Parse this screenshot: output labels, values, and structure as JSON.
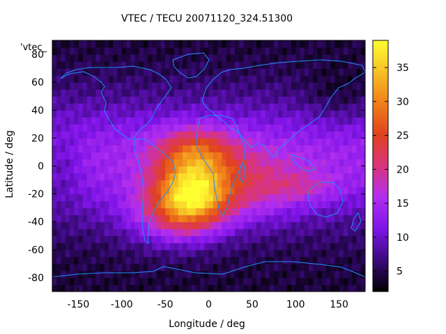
{
  "chart_data": {
    "type": "heatmap",
    "title": "VTEC / TECU 20071120_324.51300",
    "xlabel": "Longitude / deg",
    "ylabel": "Latitude / deg",
    "key_label": "'vtec_",
    "xlim": [
      -180,
      180
    ],
    "ylim": [
      -90,
      90
    ],
    "x_ticks": [
      -150,
      -100,
      -50,
      0,
      50,
      100,
      150
    ],
    "y_ticks": [
      -80,
      -60,
      -40,
      -20,
      0,
      20,
      40,
      60,
      80
    ],
    "colorbar": {
      "range": [
        2,
        39
      ],
      "ticks": [
        5,
        10,
        15,
        20,
        25,
        30,
        35
      ],
      "colormap": [
        "#000000",
        "#3a0a7a",
        "#7e14e8",
        "#b12ef0",
        "#d9347e",
        "#e0421e",
        "#f0801a",
        "#f6c026",
        "#ffff30"
      ]
    },
    "grid": false,
    "features": {
      "peak_vtec": {
        "lon": -20,
        "lat": -20,
        "value": 38
      },
      "crest_north": {
        "lon": -15,
        "lat": 10,
        "value": 32
      },
      "coastline_color": "#1e90ff"
    }
  }
}
